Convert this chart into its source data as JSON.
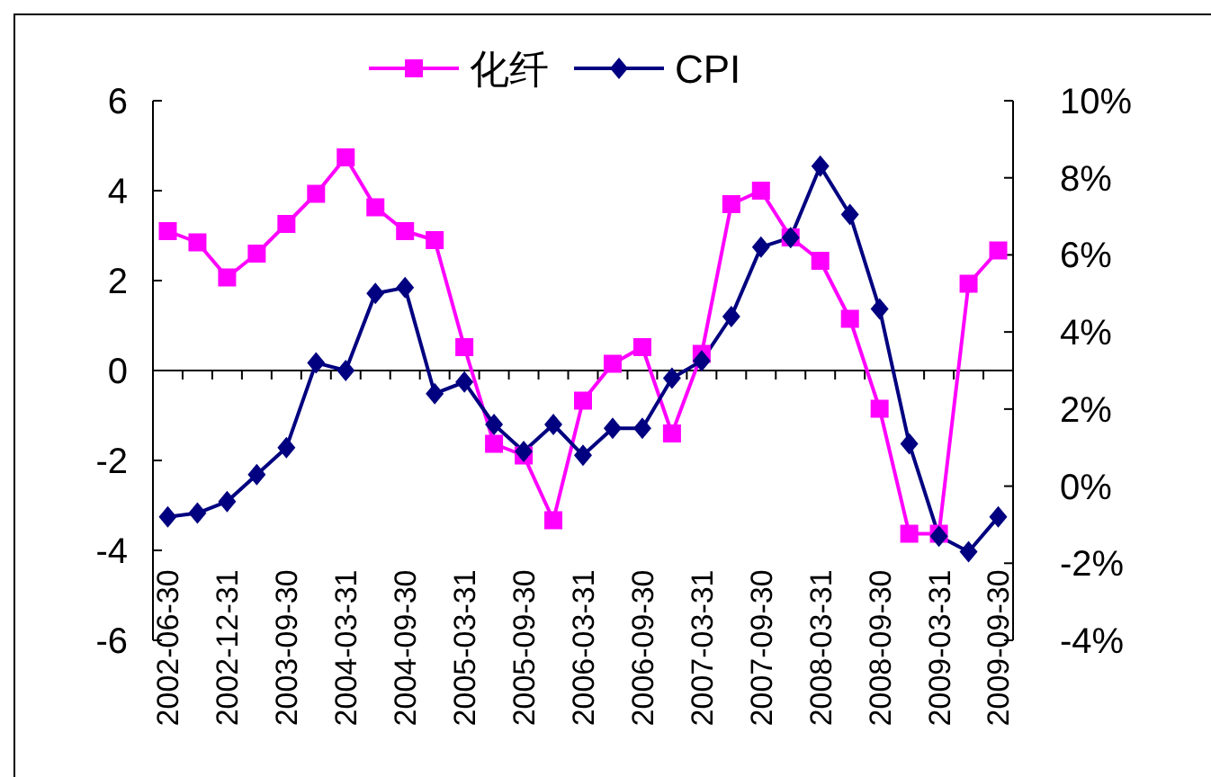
{
  "chart_data": {
    "type": "line",
    "categories": [
      "2002-06-30",
      null,
      "2002-12-31",
      null,
      "2003-09-30",
      null,
      "2004-03-31",
      null,
      "2004-09-30",
      null,
      "2005-03-31",
      null,
      "2005-09-30",
      null,
      "2006-03-31",
      null,
      "2006-09-30",
      null,
      "2007-03-31",
      null,
      "2007-09-30",
      null,
      "2008-03-31",
      null,
      "2008-09-30",
      null,
      "2009-03-31",
      null,
      "2009-09-30"
    ],
    "series": [
      {
        "name": "化纤",
        "color": "#ff00ff",
        "marker": "square",
        "values": [
          3.1,
          2.85,
          2.07,
          2.6,
          3.26,
          3.93,
          4.74,
          3.63,
          3.1,
          2.9,
          0.52,
          -1.63,
          -1.89,
          -3.33,
          -0.67,
          0.15,
          0.52,
          -1.4,
          0.37,
          3.7,
          4.0,
          2.96,
          2.44,
          1.15,
          -0.85,
          -3.63,
          -3.63,
          1.93,
          2.67
        ]
      },
      {
        "name": "CPI",
        "color": "#000080",
        "marker": "diamond",
        "axis": "y2",
        "values": [
          -0.8,
          -0.7,
          -0.4,
          0.3,
          1.0,
          3.2,
          3.0,
          5.0,
          5.15,
          2.4,
          2.7,
          1.6,
          0.9,
          1.6,
          0.8,
          1.5,
          1.5,
          2.8,
          3.25,
          4.4,
          6.2,
          6.45,
          8.3,
          7.05,
          4.6,
          1.1,
          -1.3,
          -1.7,
          -0.8
        ]
      }
    ],
    "ylim": [
      -6,
      6
    ],
    "yticks": [
      -6,
      -4,
      -2,
      0,
      2,
      4,
      6
    ],
    "y2lim": [
      -4,
      10
    ],
    "y2ticks": [
      {
        "value": -4,
        "label": "-4%"
      },
      {
        "value": -2,
        "label": "-2%"
      },
      {
        "value": 0,
        "label": "0%"
      },
      {
        "value": 2,
        "label": "2%"
      },
      {
        "value": 4,
        "label": "4%"
      },
      {
        "value": 6,
        "label": "6%"
      },
      {
        "value": 8,
        "label": "8%"
      },
      {
        "value": 10,
        "label": "10%"
      }
    ],
    "legend": "top",
    "line_style": "solid"
  }
}
